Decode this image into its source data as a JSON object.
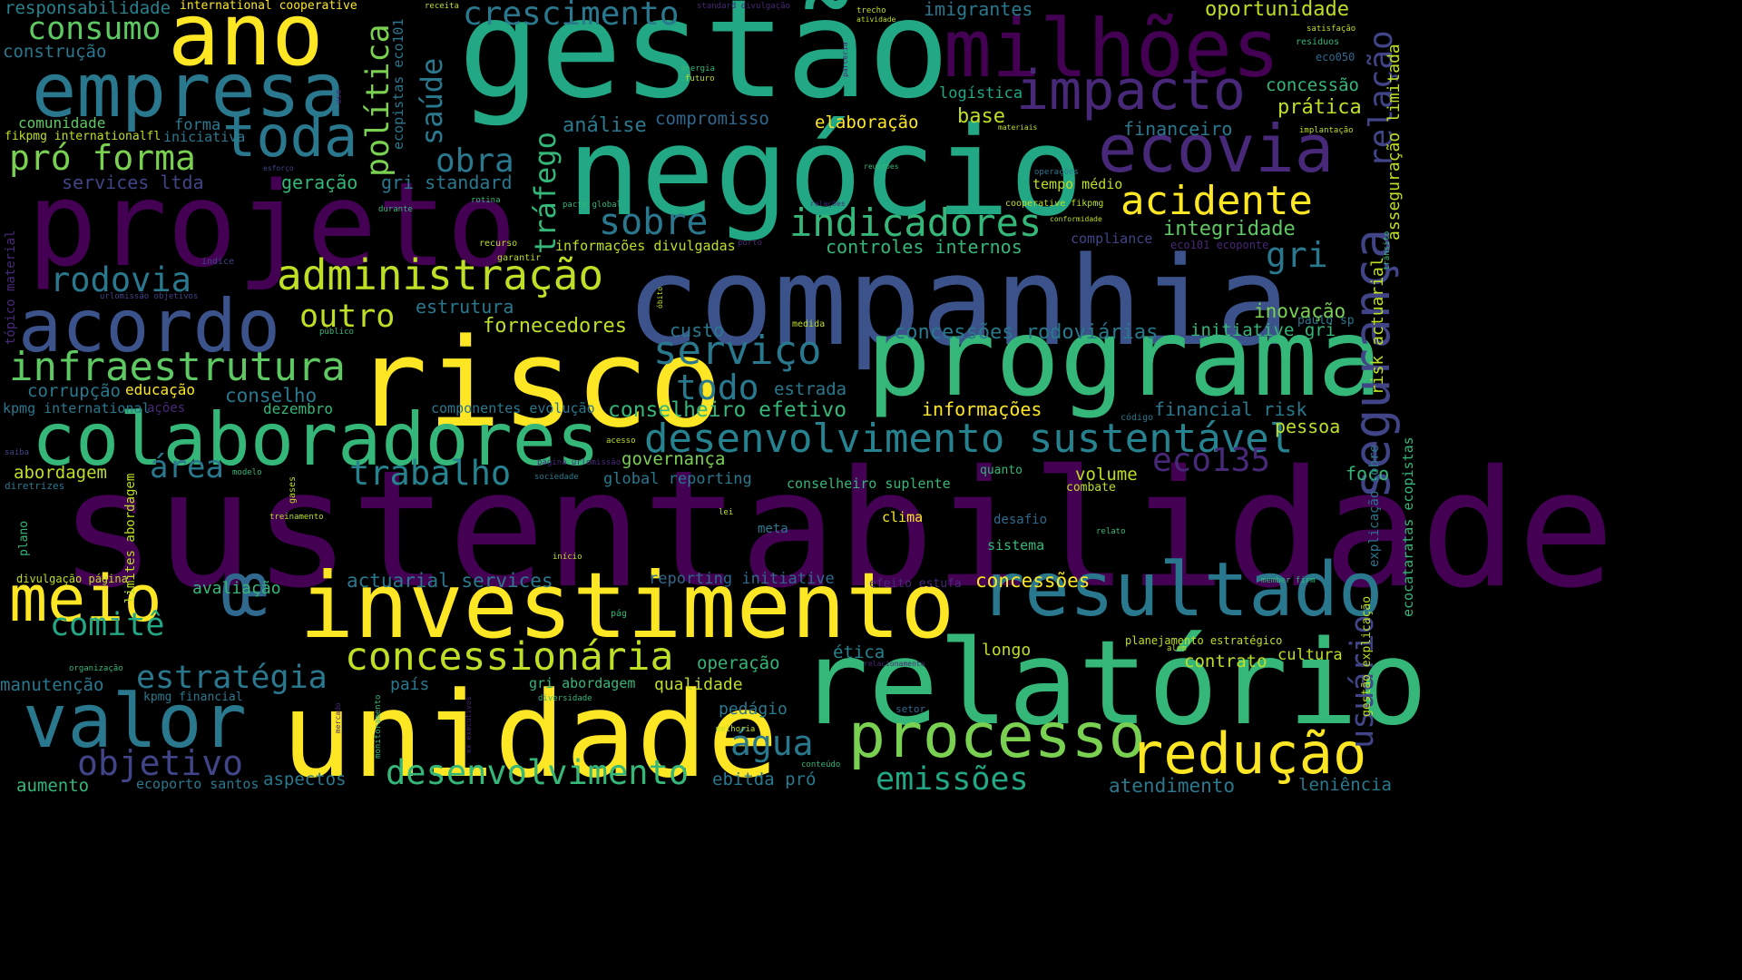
{
  "words": [
    {
      "text": "sustentabilidade",
      "color": "#440154"
    },
    {
      "text": "gestão",
      "color": "#22a884"
    },
    {
      "text": "companhia",
      "color": "#3b528b"
    },
    {
      "text": "projeto",
      "color": "#440154"
    },
    {
      "text": "negócio",
      "color": "#22a884"
    },
    {
      "text": "risco",
      "color": "#fde725"
    },
    {
      "text": "programa",
      "color": "#35b779"
    },
    {
      "text": "relatório",
      "color": "#35b779"
    },
    {
      "text": "unidade",
      "color": "#fde725"
    },
    {
      "text": "investimento",
      "color": "#fde725"
    },
    {
      "text": "colaboradores",
      "color": "#35b779"
    },
    {
      "text": "milhões",
      "color": "#440154"
    },
    {
      "text": "empresa",
      "color": "#2a788e"
    },
    {
      "text": "ano",
      "color": "#fde725"
    },
    {
      "text": "acordo",
      "color": "#3b528b"
    },
    {
      "text": "valor",
      "color": "#2a788e"
    },
    {
      "text": "resultado",
      "color": "#2a788e"
    },
    {
      "text": "processo",
      "color": "#7ad151"
    },
    {
      "text": "redução",
      "color": "#fde725"
    },
    {
      "text": "meio",
      "color": "#fde725"
    },
    {
      "text": "ecovia",
      "color": "#482878"
    },
    {
      "text": "impacto",
      "color": "#482878"
    },
    {
      "text": "segurança",
      "color": "#414487"
    },
    {
      "text": "toda",
      "color": "#2a788e"
    },
    {
      "text": "desenvolvimento sustentável",
      "color": "#26828e"
    },
    {
      "text": "concessionária",
      "color": "#bddf26"
    },
    {
      "text": "administração",
      "color": "#bddf26"
    },
    {
      "text": "infraestrutura",
      "color": "#5ec962"
    },
    {
      "text": "indicadores",
      "color": "#35b779"
    },
    {
      "text": "acidente",
      "color": "#fde725"
    },
    {
      "text": "crescimento",
      "color": "#2a788e"
    },
    {
      "text": "serviço",
      "color": "#2a788e"
    },
    {
      "text": "desenvolvimento",
      "color": "#35b779"
    },
    {
      "text": "consumo",
      "color": "#5ec962"
    },
    {
      "text": "rodovia",
      "color": "#2a788e"
    },
    {
      "text": "pró forma",
      "color": "#7ad151"
    },
    {
      "text": "objetivo",
      "color": "#414487"
    },
    {
      "text": "estratégia",
      "color": "#2a788e"
    },
    {
      "text": "emissões",
      "color": "#22a884"
    },
    {
      "text": "água",
      "color": "#2a788e"
    },
    {
      "text": "todo",
      "color": "#2a788e"
    },
    {
      "text": "trabalho",
      "color": "#26828e"
    },
    {
      "text": "comitê",
      "color": "#22a884"
    },
    {
      "text": "sobre",
      "color": "#2a788e"
    },
    {
      "text": "obra",
      "color": "#2a788e"
    },
    {
      "text": "outro",
      "color": "#bddf26"
    },
    {
      "text": "área",
      "color": "#2a788e"
    },
    {
      "text": "eco135",
      "color": "#482878"
    },
    {
      "text": "usuário",
      "color": "#414487"
    },
    {
      "text": "relação",
      "color": "#414487"
    },
    {
      "text": "política",
      "color": "#7ad151"
    },
    {
      "text": "saúde",
      "color": "#2a788e"
    },
    {
      "text": "tráfego",
      "color": "#35b779"
    },
    {
      "text": "gri",
      "color": "#2a788e"
    },
    {
      "text": "œ",
      "color": "#31688e"
    },
    {
      "text": "oportunidade",
      "color": "#bddf26"
    },
    {
      "text": "imigrantes",
      "color": "#2a788e"
    },
    {
      "text": "responsabilidade",
      "color": "#26828e"
    },
    {
      "text": "construção",
      "color": "#2a788e"
    },
    {
      "text": "international cooperative",
      "color": "#fde725"
    },
    {
      "text": "concessão",
      "color": "#35b779"
    },
    {
      "text": "prática",
      "color": "#bddf26"
    },
    {
      "text": "logística",
      "color": "#22a884"
    },
    {
      "text": "financeiro",
      "color": "#2a788e"
    },
    {
      "text": "base",
      "color": "#bddf26"
    },
    {
      "text": "elaboração",
      "color": "#fde725"
    },
    {
      "text": "compromisso",
      "color": "#31688e"
    },
    {
      "text": "análise",
      "color": "#2a788e"
    },
    {
      "text": "comunidade",
      "color": "#5ec962"
    },
    {
      "text": "forma",
      "color": "#2a788e"
    },
    {
      "text": "iniciativa",
      "color": "#2a788e"
    },
    {
      "text": "fikpmg internationalfl",
      "color": "#bddf26"
    },
    {
      "text": "services ltda",
      "color": "#414487"
    },
    {
      "text": "geração",
      "color": "#35b779"
    },
    {
      "text": "gri standard",
      "color": "#2a788e"
    },
    {
      "text": "tempo médio",
      "color": "#bddf26"
    },
    {
      "text": "integridade",
      "color": "#5ec962"
    },
    {
      "text": "controles internos",
      "color": "#35b779"
    },
    {
      "text": "informações divulgadas",
      "color": "#bddf26"
    },
    {
      "text": "compliance",
      "color": "#414487"
    },
    {
      "text": "eco101 ecoponte",
      "color": "#482878"
    },
    {
      "text": "estrutura",
      "color": "#2a788e"
    },
    {
      "text": "fornecedores",
      "color": "#bddf26"
    },
    {
      "text": "custo",
      "color": "#2a788e"
    },
    {
      "text": "concessões rodoviárias",
      "color": "#2a788e"
    },
    {
      "text": "initiative gri",
      "color": "#35b779"
    },
    {
      "text": "inovação",
      "color": "#7ad151"
    },
    {
      "text": "paulo sp",
      "color": "#2a788e"
    },
    {
      "text": "corrupção",
      "color": "#2a788e"
    },
    {
      "text": "educação",
      "color": "#fde725"
    },
    {
      "text": "conselho",
      "color": "#2a788e"
    },
    {
      "text": "estrada",
      "color": "#2a788e"
    },
    {
      "text": "kpmg international",
      "color": "#2a788e"
    },
    {
      "text": "ações",
      "color": "#482878"
    },
    {
      "text": "dezembro",
      "color": "#35b779"
    },
    {
      "text": "componentes evolução",
      "color": "#2a788e"
    },
    {
      "text": "conselheiro efetivo",
      "color": "#35b779"
    },
    {
      "text": "informações",
      "color": "#fde725"
    },
    {
      "text": "financial risk",
      "color": "#2a788e"
    },
    {
      "text": "pessoa",
      "color": "#bddf26"
    },
    {
      "text": "risk actuarial",
      "color": "#bddf26"
    },
    {
      "text": "asseguração limitada",
      "color": "#bddf26"
    },
    {
      "text": "abordagem",
      "color": "#bddf26"
    },
    {
      "text": "governança",
      "color": "#7ad151"
    },
    {
      "text": "global reporting",
      "color": "#2a788e"
    },
    {
      "text": "conselheiro suplente",
      "color": "#35b779"
    },
    {
      "text": "quanto",
      "color": "#35b779"
    },
    {
      "text": "volume",
      "color": "#bddf26"
    },
    {
      "text": "combate",
      "color": "#bddf26"
    },
    {
      "text": "foco",
      "color": "#35b779"
    },
    {
      "text": "clima",
      "color": "#fde725"
    },
    {
      "text": "desafio",
      "color": "#31688e"
    },
    {
      "text": "meta",
      "color": "#2a788e"
    },
    {
      "text": "sistema",
      "color": "#35b779"
    },
    {
      "text": "actuarial services",
      "color": "#2a788e"
    },
    {
      "text": "reporting initiative",
      "color": "#31688e"
    },
    {
      "text": "efeito estufa",
      "color": "#482878"
    },
    {
      "text": "concessões",
      "color": "#fde725"
    },
    {
      "text": "avaliação",
      "color": "#35b779"
    },
    {
      "text": "divulgação página",
      "color": "#bddf26"
    },
    {
      "text": "limites abordagem",
      "color": "#bddf26"
    },
    {
      "text": "manutenção",
      "color": "#2a788e"
    },
    {
      "text": "kpmg financial",
      "color": "#2a788e"
    },
    {
      "text": "país",
      "color": "#2a788e"
    },
    {
      "text": "gri abordagem",
      "color": "#35b779"
    },
    {
      "text": "qualidade",
      "color": "#bddf26"
    },
    {
      "text": "operação",
      "color": "#35b779"
    },
    {
      "text": "ética",
      "color": "#26828e"
    },
    {
      "text": "longo",
      "color": "#bddf26"
    },
    {
      "text": "contrato",
      "color": "#bddf26"
    },
    {
      "text": "cultura",
      "color": "#bddf26"
    },
    {
      "text": "planejamento estratégico",
      "color": "#bddf26"
    },
    {
      "text": "pedágio",
      "color": "#2a788e"
    },
    {
      "text": "aumento",
      "color": "#35b779"
    },
    {
      "text": "ecoporto santos",
      "color": "#2a788e"
    },
    {
      "text": "aspectos",
      "color": "#2a788e"
    },
    {
      "text": "ebitda pró",
      "color": "#2a788e"
    },
    {
      "text": "atendimento",
      "color": "#2a788e"
    },
    {
      "text": "leniência",
      "color": "#2a788e"
    },
    {
      "text": "gestão explicação",
      "color": "#bddf26"
    },
    {
      "text": "explicação sobre",
      "color": "#2a788e"
    },
    {
      "text": "ecocataratas ecopistas",
      "color": "#35b779"
    },
    {
      "text": "ecopistas eco101",
      "color": "#2a788e"
    },
    {
      "text": "receita",
      "color": "#bddf26"
    },
    {
      "text": "standard divulgação",
      "color": "#482878"
    },
    {
      "text": "trecho",
      "color": "#bddf26"
    },
    {
      "text": "atividade",
      "color": "#bddf26"
    },
    {
      "text": "satisfação",
      "color": "#bddf26"
    },
    {
      "text": "resíduos",
      "color": "#35b779"
    },
    {
      "text": "eco050",
      "color": "#31688e"
    },
    {
      "text": "energia",
      "color": "#35b779"
    },
    {
      "text": "futuro",
      "color": "#bddf26"
    },
    {
      "text": "parceria",
      "color": "#482878"
    },
    {
      "text": "uso",
      "color": "#482878"
    },
    {
      "text": "materiais",
      "color": "#bddf26"
    },
    {
      "text": "implantação",
      "color": "#bddf26"
    },
    {
      "text": "esforço",
      "color": "#414487"
    },
    {
      "text": "reuniões",
      "color": "#35b779"
    },
    {
      "text": "operações",
      "color": "#2a788e"
    },
    {
      "text": "cooperative fikpmg",
      "color": "#bddf26"
    },
    {
      "text": "pacto global",
      "color": "#35b779"
    },
    {
      "text": "relações",
      "color": "#482878"
    },
    {
      "text": "rotina",
      "color": "#35b779"
    },
    {
      "text": "durante",
      "color": "#35b779"
    },
    {
      "text": "conformidade",
      "color": "#bddf26"
    },
    {
      "text": "trânsito",
      "color": "#35b779"
    },
    {
      "text": "tópico material",
      "color": "#482878"
    },
    {
      "text": "índice",
      "color": "#414487"
    },
    {
      "text": "urlomissão objetivos",
      "color": "#414487"
    },
    {
      "text": "recurso",
      "color": "#bddf26"
    },
    {
      "text": "garantir",
      "color": "#bddf26"
    },
    {
      "text": "porto",
      "color": "#482878"
    },
    {
      "text": "óbito",
      "color": "#bddf26"
    },
    {
      "text": "público",
      "color": "#35b779"
    },
    {
      "text": "medida",
      "color": "#bddf26"
    },
    {
      "text": "código",
      "color": "#2a788e"
    },
    {
      "text": "acesso",
      "color": "#bddf26"
    },
    {
      "text": "página urlomissão",
      "color": "#482878"
    },
    {
      "text": "sociedade",
      "color": "#2a788e"
    },
    {
      "text": "saiba",
      "color": "#414487"
    },
    {
      "text": "diretrizes",
      "color": "#2a788e"
    },
    {
      "text": "modelo",
      "color": "#35b779"
    },
    {
      "text": "gases",
      "color": "#bddf26"
    },
    {
      "text": "treinamento",
      "color": "#bddf26"
    },
    {
      "text": "plano",
      "color": "#35b779"
    },
    {
      "text": "lei",
      "color": "#bddf26"
    },
    {
      "text": "relato",
      "color": "#35b779"
    },
    {
      "text": "início",
      "color": "#bddf26"
    },
    {
      "text": "member firm",
      "color": "#35b779"
    },
    {
      "text": "pág",
      "color": "#35b779"
    },
    {
      "text": "além",
      "color": "#bddf26"
    },
    {
      "text": "organização",
      "color": "#35b779"
    },
    {
      "text": "relacionamento",
      "color": "#482878"
    },
    {
      "text": "diversidade",
      "color": "#35b779"
    },
    {
      "text": "mercado",
      "color": "#482878"
    },
    {
      "text": "monitoramento",
      "color": "#35b779"
    },
    {
      "text": "ex executivos",
      "color": "#482878"
    },
    {
      "text": "setor",
      "color": "#31688e"
    },
    {
      "text": "melhoria",
      "color": "#bddf26"
    },
    {
      "text": "conteúdo",
      "color": "#35b779"
    }
  ]
}
